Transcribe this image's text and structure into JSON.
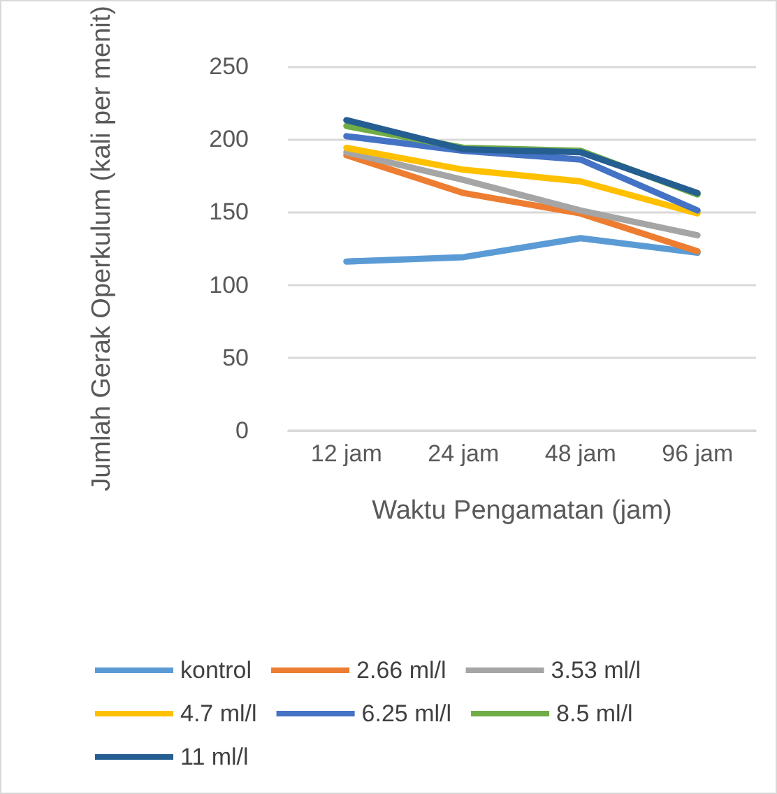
{
  "chart_data": {
    "type": "line",
    "xlabel": "Waktu Pengamatan (jam)",
    "ylabel": "Jumlah Gerak Operkulum (kali per menit)",
    "categories": [
      "12 jam",
      "24 jam",
      "48 jam",
      "96 jam"
    ],
    "series": [
      {
        "name": "kontrol",
        "color": "#5b9bd5",
        "values": [
          116,
          119,
          132,
          122
        ]
      },
      {
        "name": "2.66 ml/l",
        "color": "#ed7d31",
        "values": [
          189,
          163,
          149,
          123
        ]
      },
      {
        "name": "3.53 ml/l",
        "color": "#a5a5a5",
        "values": [
          191,
          172,
          151,
          134
        ]
      },
      {
        "name": "4.7 ml/l",
        "color": "#ffc000",
        "values": [
          194,
          179,
          171,
          149
        ]
      },
      {
        "name": "6.25 ml/l",
        "color": "#4472c4",
        "values": [
          202,
          192,
          186,
          151
        ]
      },
      {
        "name": "8.5 ml/l",
        "color": "#70ad47",
        "values": [
          209,
          194,
          192,
          162
        ]
      },
      {
        "name": "11 ml/l",
        "color": "#255e91",
        "values": [
          213,
          193,
          191,
          163
        ]
      }
    ],
    "ylim": [
      0,
      250
    ],
    "yticks": [
      0,
      50,
      100,
      150,
      200,
      250
    ],
    "grid": "y",
    "legend": "bottom",
    "marker": "none",
    "line_style": "solid"
  }
}
